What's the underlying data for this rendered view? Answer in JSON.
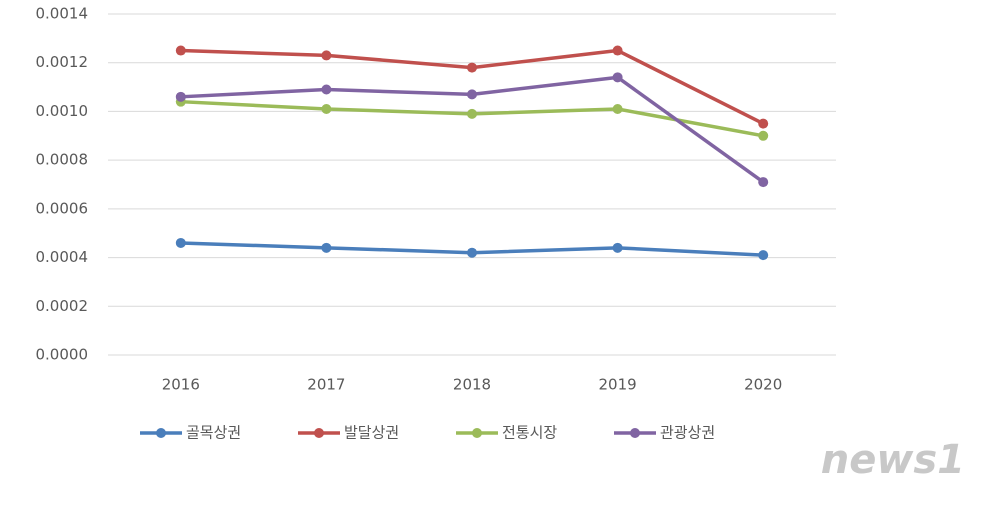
{
  "chart_data": {
    "type": "line",
    "categories": [
      "2016",
      "2017",
      "2018",
      "2019",
      "2020"
    ],
    "series": [
      {
        "name": "골목상권",
        "color": "#4a7ebb",
        "values": [
          0.00046,
          0.00044,
          0.00042,
          0.00044,
          0.00041
        ]
      },
      {
        "name": "발달상권",
        "color": "#c0504d",
        "values": [
          0.00125,
          0.00123,
          0.00118,
          0.00125,
          0.00095
        ]
      },
      {
        "name": "전통시장",
        "color": "#9bbb59",
        "values": [
          0.00104,
          0.00101,
          0.00099,
          0.00101,
          0.0009
        ]
      },
      {
        "name": "관광상권",
        "color": "#8064a2",
        "values": [
          0.00106,
          0.00109,
          0.00107,
          0.00114,
          0.00071
        ]
      }
    ],
    "ylim": [
      0,
      0.0014
    ],
    "yticks": [
      {
        "value": 0,
        "label": "0.0000"
      },
      0.0002,
      0.0004,
      0.0006,
      0.0008,
      {
        "value": 0.001,
        "label": "0.0010"
      },
      0.0012,
      0.0014
    ],
    "grid": true,
    "legend": "bottom",
    "watermark": "news1"
  }
}
